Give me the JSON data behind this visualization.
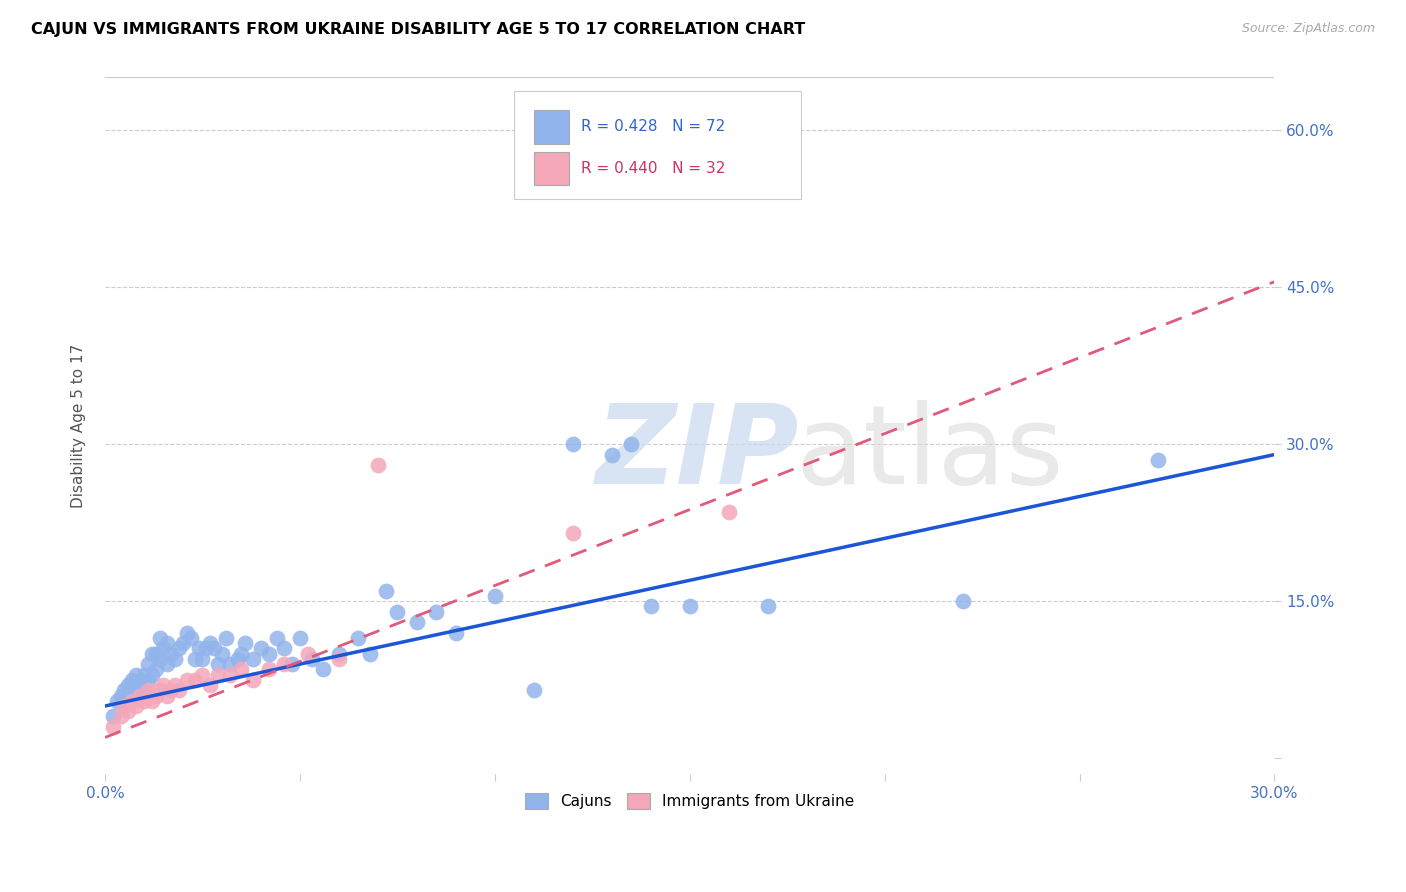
{
  "title": "CAJUN VS IMMIGRANTS FROM UKRAINE DISABILITY AGE 5 TO 17 CORRELATION CHART",
  "source": "Source: ZipAtlas.com",
  "ylabel": "Disability Age 5 to 17",
  "ytick_vals": [
    0.0,
    0.15,
    0.3,
    0.45,
    0.6
  ],
  "ytick_labels": [
    "",
    "15.0%",
    "30.0%",
    "45.0%",
    "60.0%"
  ],
  "xlim": [
    0.0,
    0.3
  ],
  "ylim": [
    -0.015,
    0.65
  ],
  "cajun_R": 0.428,
  "cajun_N": 72,
  "ukraine_R": 0.44,
  "ukraine_N": 32,
  "cajun_color": "#92B4EC",
  "ukraine_color": "#F4A7B9",
  "cajun_line_color": "#1a56d6",
  "ukraine_line_color": "#e05a7a",
  "legend_label_cajun": "Cajuns",
  "legend_label_ukraine": "Immigrants from Ukraine",
  "cajun_x": [
    0.002,
    0.003,
    0.004,
    0.005,
    0.005,
    0.006,
    0.006,
    0.007,
    0.007,
    0.008,
    0.008,
    0.009,
    0.009,
    0.01,
    0.01,
    0.011,
    0.011,
    0.012,
    0.012,
    0.013,
    0.013,
    0.014,
    0.014,
    0.015,
    0.016,
    0.016,
    0.017,
    0.018,
    0.019,
    0.02,
    0.021,
    0.022,
    0.023,
    0.024,
    0.025,
    0.026,
    0.027,
    0.028,
    0.029,
    0.03,
    0.031,
    0.032,
    0.034,
    0.035,
    0.036,
    0.038,
    0.04,
    0.042,
    0.044,
    0.046,
    0.048,
    0.05,
    0.053,
    0.056,
    0.06,
    0.065,
    0.068,
    0.072,
    0.075,
    0.08,
    0.085,
    0.09,
    0.1,
    0.11,
    0.12,
    0.13,
    0.135,
    0.14,
    0.15,
    0.17,
    0.22,
    0.27
  ],
  "cajun_y": [
    0.04,
    0.055,
    0.06,
    0.05,
    0.065,
    0.055,
    0.07,
    0.06,
    0.075,
    0.065,
    0.08,
    0.07,
    0.075,
    0.065,
    0.08,
    0.075,
    0.09,
    0.08,
    0.1,
    0.085,
    0.1,
    0.095,
    0.115,
    0.105,
    0.09,
    0.11,
    0.1,
    0.095,
    0.105,
    0.11,
    0.12,
    0.115,
    0.095,
    0.105,
    0.095,
    0.105,
    0.11,
    0.105,
    0.09,
    0.1,
    0.115,
    0.09,
    0.095,
    0.1,
    0.11,
    0.095,
    0.105,
    0.1,
    0.115,
    0.105,
    0.09,
    0.115,
    0.095,
    0.085,
    0.1,
    0.115,
    0.1,
    0.16,
    0.14,
    0.13,
    0.14,
    0.12,
    0.155,
    0.065,
    0.3,
    0.29,
    0.3,
    0.145,
    0.145,
    0.145,
    0.15,
    0.285
  ],
  "ukraine_x": [
    0.002,
    0.004,
    0.005,
    0.006,
    0.007,
    0.008,
    0.009,
    0.01,
    0.011,
    0.012,
    0.013,
    0.014,
    0.015,
    0.016,
    0.017,
    0.018,
    0.019,
    0.021,
    0.023,
    0.025,
    0.027,
    0.029,
    0.032,
    0.035,
    0.038,
    0.042,
    0.046,
    0.052,
    0.06,
    0.07,
    0.12,
    0.16
  ],
  "ukraine_y": [
    0.03,
    0.04,
    0.05,
    0.045,
    0.055,
    0.05,
    0.06,
    0.055,
    0.065,
    0.055,
    0.06,
    0.065,
    0.07,
    0.06,
    0.065,
    0.07,
    0.065,
    0.075,
    0.075,
    0.08,
    0.07,
    0.08,
    0.08,
    0.085,
    0.075,
    0.085,
    0.09,
    0.1,
    0.095,
    0.28,
    0.215,
    0.235
  ],
  "cajun_intercept": 0.05,
  "cajun_slope": 0.8,
  "ukraine_intercept": 0.02,
  "ukraine_slope": 1.45
}
